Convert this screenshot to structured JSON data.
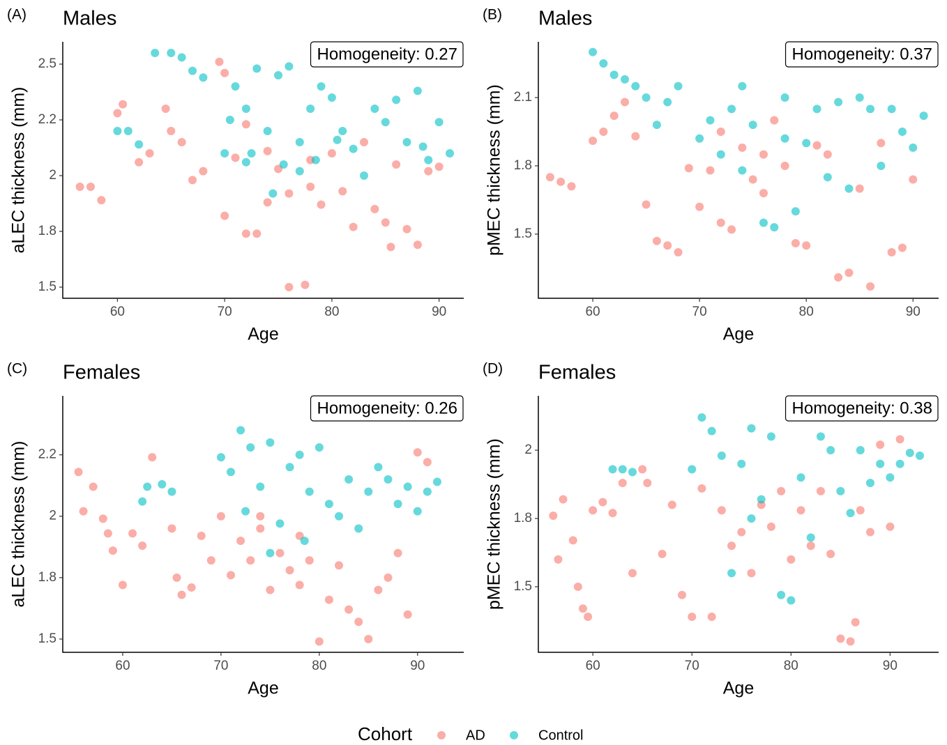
{
  "chart_data": [
    {
      "type": "scatter",
      "tag": "(A)",
      "title": "Males",
      "x_label": "Age",
      "y_label": "aLEC thickness (mm)",
      "annotation": "Homogeneity: 0.27",
      "xlim": [
        54.9,
        92.3
      ],
      "ylim": [
        1.45,
        2.6
      ],
      "xticks": [
        60,
        70,
        80,
        90
      ],
      "yticks": [
        1.5,
        {
          "value": 1.75,
          "label": "1.8"
        },
        2.0,
        {
          "value": 2.25,
          "label": "2.2"
        },
        2.5
      ],
      "series": [
        {
          "name": "AD",
          "color": "#F8766D",
          "x": [
            56.5,
            57.5,
            58.5,
            60,
            60.5,
            62,
            63,
            64.5,
            65,
            66,
            67,
            68,
            69.5,
            70,
            70,
            71,
            72,
            73,
            74,
            75,
            76,
            77.5,
            78,
            79,
            80,
            81,
            82,
            83,
            84,
            85,
            85.5,
            86,
            87,
            88,
            89,
            90,
            76,
            78,
            72,
            74
          ],
          "values": [
            1.95,
            1.95,
            1.89,
            2.28,
            2.32,
            2.06,
            2.1,
            2.3,
            2.2,
            2.15,
            1.98,
            2.02,
            2.51,
            2.46,
            1.82,
            2.08,
            1.74,
            1.74,
            2.11,
            2.03,
            1.5,
            1.51,
            1.95,
            1.87,
            2.1,
            1.93,
            1.77,
            2.15,
            1.85,
            1.79,
            1.68,
            2.05,
            1.76,
            1.69,
            2.02,
            2.04,
            1.92,
            2.07,
            2.23,
            1.88
          ]
        },
        {
          "name": "Control",
          "color": "#00BFC4",
          "x": [
            60,
            61,
            62,
            63.5,
            65,
            66,
            67,
            68,
            70,
            70.5,
            71,
            72,
            72.5,
            73,
            74,
            75,
            75.5,
            76,
            77,
            78,
            78.5,
            79,
            80,
            80.5,
            81,
            82,
            83,
            84,
            85,
            86,
            87,
            88,
            88.5,
            89,
            90,
            91,
            74.5,
            77,
            72
          ],
          "values": [
            2.2,
            2.2,
            2.14,
            2.55,
            2.55,
            2.53,
            2.47,
            2.44,
            2.1,
            2.25,
            2.4,
            2.3,
            2.1,
            2.48,
            2.2,
            2.45,
            2.05,
            2.49,
            2.15,
            2.3,
            2.07,
            2.4,
            2.35,
            2.16,
            2.2,
            2.12,
            2.0,
            2.3,
            2.24,
            2.34,
            2.15,
            2.38,
            2.13,
            2.07,
            2.24,
            2.1,
            1.92,
            2.02,
            2.06
          ]
        }
      ]
    },
    {
      "type": "scatter",
      "tag": "(B)",
      "title": "Males",
      "x_label": "Age",
      "y_label": "pMEC thickness (mm)",
      "annotation": "Homogeneity: 0.37",
      "xlim": [
        54.9,
        92.4
      ],
      "ylim": [
        1.218,
        2.345
      ],
      "xticks": [
        60,
        70,
        80,
        90
      ],
      "yticks": [
        1.5,
        1.8,
        2.1
      ],
      "series": [
        {
          "name": "AD",
          "color": "#F8766D",
          "x": [
            56,
            57,
            58,
            60,
            61,
            62,
            63,
            64,
            65,
            66,
            67,
            68,
            69,
            70,
            71,
            72,
            73,
            74,
            75,
            76,
            77,
            78,
            79,
            80,
            81,
            82,
            83,
            84,
            85,
            86,
            87,
            88,
            89,
            90,
            72,
            76
          ],
          "values": [
            1.75,
            1.73,
            1.71,
            1.91,
            1.95,
            2.02,
            2.08,
            1.93,
            1.63,
            1.47,
            1.45,
            1.42,
            1.79,
            1.62,
            1.78,
            1.55,
            1.52,
            1.88,
            1.74,
            1.85,
            2.0,
            1.8,
            1.46,
            1.45,
            1.89,
            1.85,
            1.31,
            1.33,
            1.7,
            1.27,
            1.9,
            1.42,
            1.44,
            1.74,
            1.95,
            1.68
          ]
        },
        {
          "name": "Control",
          "color": "#00BFC4",
          "x": [
            60,
            61,
            62,
            63,
            64,
            65,
            66,
            67,
            68,
            70,
            71,
            72,
            73,
            74,
            75,
            76,
            77,
            78,
            79,
            80,
            81,
            82,
            83,
            84,
            85,
            86,
            87,
            88,
            89,
            90,
            91,
            74,
            78
          ],
          "values": [
            2.3,
            2.25,
            2.2,
            2.18,
            2.15,
            2.1,
            1.98,
            2.08,
            2.15,
            1.92,
            2.0,
            1.85,
            2.05,
            2.15,
            1.98,
            1.55,
            1.53,
            2.1,
            1.6,
            1.9,
            2.05,
            1.75,
            2.08,
            1.7,
            2.1,
            2.05,
            1.8,
            2.05,
            1.95,
            1.88,
            2.02,
            1.78,
            1.92
          ]
        }
      ]
    },
    {
      "type": "scatter",
      "tag": "(C)",
      "title": "Females",
      "x_label": "Age",
      "y_label": "aLEC thickness (mm)",
      "annotation": "Homogeneity: 0.26",
      "xlim": [
        53.9,
        94.7
      ],
      "ylim": [
        1.446,
        2.49
      ],
      "xticks": [
        60,
        70,
        80,
        90
      ],
      "yticks": [
        1.5,
        {
          "value": 1.75,
          "label": "1.8"
        },
        2.0,
        {
          "value": 2.25,
          "label": "2.2"
        }
      ],
      "series": [
        {
          "name": "AD",
          "color": "#F8766D",
          "x": [
            55.5,
            56,
            57,
            58,
            58.5,
            59,
            60,
            61,
            62,
            63,
            65,
            65.5,
            66,
            67,
            68,
            69,
            70,
            71,
            72,
            73,
            74,
            75,
            76,
            77,
            78,
            79,
            80,
            81,
            82,
            83,
            84,
            85,
            86,
            87,
            88,
            89,
            90,
            91,
            74,
            78
          ],
          "values": [
            2.18,
            2.02,
            2.12,
            1.99,
            1.93,
            1.86,
            1.72,
            1.93,
            1.88,
            2.24,
            1.95,
            1.75,
            1.68,
            1.71,
            1.92,
            1.82,
            2.0,
            1.76,
            1.9,
            1.82,
            1.95,
            1.7,
            1.85,
            1.78,
            1.92,
            1.82,
            1.49,
            1.66,
            1.8,
            1.62,
            1.57,
            1.5,
            1.7,
            1.75,
            1.85,
            1.6,
            2.26,
            2.22,
            2.0,
            1.72
          ]
        },
        {
          "name": "Control",
          "color": "#00BFC4",
          "x": [
            62,
            62.5,
            64,
            65,
            70,
            71,
            72,
            72.5,
            73,
            74,
            75,
            76,
            77,
            78,
            78.5,
            79,
            80,
            81,
            82,
            83,
            84,
            85,
            86,
            87,
            88,
            89,
            90,
            91,
            92,
            75
          ],
          "values": [
            2.06,
            2.12,
            2.13,
            2.1,
            2.24,
            2.18,
            2.35,
            2.02,
            2.28,
            2.12,
            2.3,
            1.97,
            2.2,
            2.25,
            1.9,
            2.1,
            2.28,
            2.05,
            2.0,
            2.15,
            1.95,
            2.1,
            2.2,
            2.15,
            2.05,
            2.12,
            2.02,
            2.1,
            2.14,
            1.85
          ]
        }
      ]
    },
    {
      "type": "scatter",
      "tag": "(D)",
      "title": "Females",
      "x_label": "Age",
      "y_label": "pMEC thickness (mm)",
      "annotation": "Homogeneity: 0.38",
      "xlim": [
        54.5,
        94.9
      ],
      "ylim": [
        1.26,
        2.199
      ],
      "xticks": [
        60,
        70,
        80,
        90
      ],
      "yticks": [
        1.5,
        {
          "value": 1.75,
          "label": "1.8"
        },
        2.0
      ],
      "series": [
        {
          "name": "AD",
          "color": "#F8766D",
          "x": [
            56,
            56.5,
            57,
            58,
            58.5,
            59,
            59.5,
            60,
            61,
            62,
            63,
            64,
            65,
            65.5,
            67,
            68,
            69,
            70,
            71,
            72,
            73,
            74,
            75,
            76,
            77,
            78,
            79,
            80,
            81,
            82,
            83,
            84,
            85,
            86,
            86.5,
            87,
            88,
            89,
            90,
            91
          ],
          "values": [
            1.76,
            1.6,
            1.82,
            1.67,
            1.5,
            1.42,
            1.39,
            1.78,
            1.81,
            1.77,
            1.88,
            1.55,
            1.93,
            1.88,
            1.62,
            1.8,
            1.47,
            1.39,
            1.86,
            1.39,
            1.78,
            1.65,
            1.7,
            1.55,
            1.8,
            1.72,
            1.85,
            1.6,
            1.78,
            1.65,
            1.85,
            1.62,
            1.31,
            1.3,
            1.37,
            1.78,
            1.7,
            2.02,
            1.72,
            2.04
          ]
        },
        {
          "name": "Control",
          "color": "#00BFC4",
          "x": [
            62,
            63,
            64,
            70,
            71,
            72,
            73,
            74,
            75,
            76,
            77,
            78,
            79,
            80,
            81,
            82,
            83,
            84,
            85,
            86,
            87,
            88,
            89,
            90,
            91,
            92,
            93,
            76
          ],
          "values": [
            1.93,
            1.93,
            1.92,
            1.93,
            2.12,
            2.07,
            1.98,
            1.55,
            1.95,
            2.08,
            1.82,
            2.05,
            1.47,
            1.45,
            1.9,
            1.68,
            2.05,
            2.0,
            1.85,
            1.77,
            2.0,
            1.88,
            1.95,
            1.9,
            1.95,
            1.99,
            1.98,
            1.75
          ]
        }
      ]
    }
  ],
  "legend_title": "Cohort"
}
